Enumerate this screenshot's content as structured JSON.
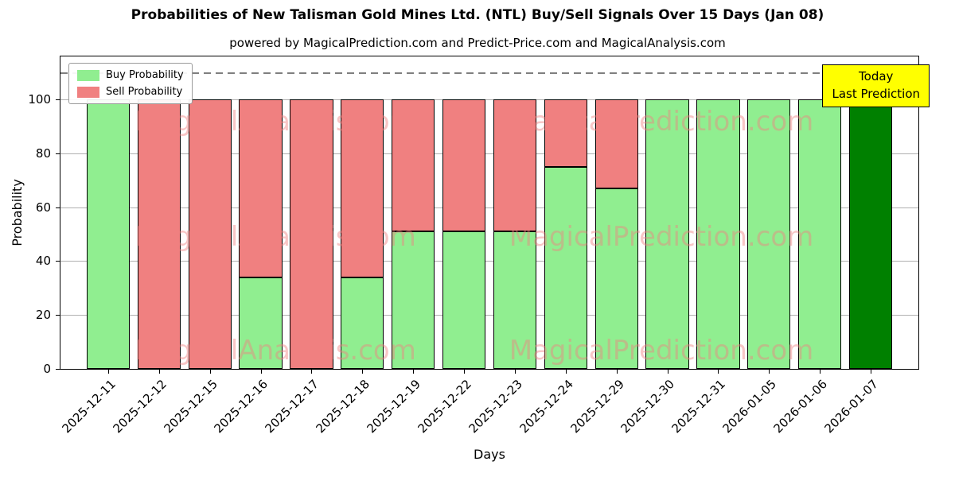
{
  "chart": {
    "title": "Probabilities of New Talisman Gold Mines Ltd. (NTL) Buy/Sell Signals Over 15 Days (Jan 08)",
    "subtitle": "powered by MagicalPrediction.com and Predict-Price.com and MagicalAnalysis.com",
    "xlabel": "Days",
    "ylabel": "Probability"
  },
  "legend": {
    "buy_label": "Buy Probability",
    "sell_label": "Sell Probability"
  },
  "annotation": {
    "line1": "Today",
    "line2": "Last Prediction"
  },
  "watermarks": [
    "MagicalAnalysis.com",
    "MagicalPrediction.com"
  ],
  "colors": {
    "buy": "#90ee90",
    "sell": "#f08080",
    "today": "#008000",
    "annotation_bg": "#ffff00",
    "grid": "#b0b0b0",
    "dashed_line": "#7f7f7f",
    "watermark": "rgba(240,128,128,0.45)"
  },
  "chart_data": {
    "type": "bar",
    "stacked": true,
    "title": "Probabilities of New Talisman Gold Mines Ltd. (NTL) Buy/Sell Signals Over 15 Days (Jan 08)",
    "xlabel": "Days",
    "ylabel": "Probability",
    "categories": [
      "2025-12-11",
      "2025-12-12",
      "2025-12-15",
      "2025-12-16",
      "2025-12-17",
      "2025-12-18",
      "2025-12-19",
      "2025-12-22",
      "2025-12-23",
      "2025-12-24",
      "2025-12-29",
      "2025-12-30",
      "2025-12-31",
      "2026-01-05",
      "2026-01-06",
      "2026-01-07"
    ],
    "series": [
      {
        "name": "Buy Probability",
        "color": "#90ee90",
        "values": [
          100,
          0,
          0,
          34,
          0,
          34,
          51,
          51,
          51,
          75,
          67,
          100,
          100,
          100,
          100,
          100
        ]
      },
      {
        "name": "Sell Probability",
        "color": "#f08080",
        "values": [
          0,
          100,
          100,
          66,
          100,
          66,
          49,
          49,
          49,
          25,
          33,
          0,
          0,
          0,
          0,
          0
        ]
      }
    ],
    "today_index": 15,
    "today_color": "#008000",
    "ylim": [
      0,
      116
    ],
    "yticks": [
      0,
      20,
      40,
      60,
      80,
      100
    ],
    "dashed_line_y": 110,
    "grid": true,
    "legend_position": "upper left"
  }
}
